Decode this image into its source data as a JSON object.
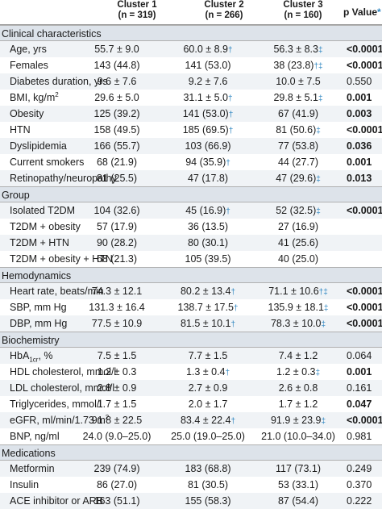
{
  "header": {
    "cluster1": "Cluster 1",
    "cluster1_n": "(n = 319)",
    "cluster2": "Cluster 2",
    "cluster2_n": "(n = 266)",
    "cluster3": "Cluster 3",
    "cluster3_n": "(n = 160)",
    "pvalue": "p Value",
    "pvalue_mark": "*"
  },
  "sections": [
    {
      "title": "Clinical characteristics",
      "rows": [
        {
          "label": "Age, yrs",
          "c1": "55.7 ± 9.0",
          "c2": "60.0 ± 8.9",
          "c2m": "†",
          "c3": "56.3 ± 8.3",
          "c3m": "‡",
          "p": "<0.0001",
          "bold": true
        },
        {
          "label": "Females",
          "c1": "143 (44.8)",
          "c2": "141 (53.0)",
          "c2m": "",
          "c3": "38 (23.8)",
          "c3m": "†‡",
          "p": "<0.0001",
          "bold": true
        },
        {
          "label": "Diabetes duration, yrs",
          "c1": "9.6 ± 7.6",
          "c2": "9.2 ± 7.6",
          "c2m": "",
          "c3": "10.0 ± 7.5",
          "c3m": "",
          "p": "0.550",
          "bold": false
        },
        {
          "label": "BMI, kg/m",
          "sup": "2",
          "c1": "29.6 ± 5.0",
          "c2": "31.1 ± 5.0",
          "c2m": "†",
          "c3": "29.8 ± 5.1",
          "c3m": "‡",
          "p": "0.001",
          "bold": true
        },
        {
          "label": "Obesity",
          "c1": "125 (39.2)",
          "c2": "141 (53.0)",
          "c2m": "†",
          "c3": "67 (41.9)",
          "c3m": "",
          "p": "0.003",
          "bold": true
        },
        {
          "label": "HTN",
          "c1": "158 (49.5)",
          "c2": "185 (69.5)",
          "c2m": "†",
          "c3": "81 (50.6)",
          "c3m": "‡",
          "p": "<0.0001",
          "bold": true
        },
        {
          "label": "Dyslipidemia",
          "c1": "166 (55.7)",
          "c2": "103 (66.9)",
          "c2m": "",
          "c3": "77 (53.8)",
          "c3m": "",
          "p": "0.036",
          "bold": true
        },
        {
          "label": "Current smokers",
          "c1": "68 (21.9)",
          "c2": "94 (35.9)",
          "c2m": "†",
          "c3": "44 (27.7)",
          "c3m": "",
          "p": "0.001",
          "bold": true
        },
        {
          "label": "Retinopathy/neuropathy",
          "c1": "81 (25.5)",
          "c2": "47 (17.8)",
          "c2m": "",
          "c3": "47 (29.6)",
          "c3m": "‡",
          "p": "0.013",
          "bold": true
        }
      ]
    },
    {
      "title": "Group",
      "rows": [
        {
          "label": "Isolated T2DM",
          "c1": "104 (32.6)",
          "c2": "45 (16.9)",
          "c2m": "†",
          "c3": "52 (32.5)",
          "c3m": "‡",
          "p": "<0.0001",
          "bold": true
        },
        {
          "label": "T2DM + obesity",
          "c1": "57 (17.9)",
          "c2": "36 (13.5)",
          "c2m": "",
          "c3": "27 (16.9)",
          "c3m": "",
          "p": "",
          "bold": false
        },
        {
          "label": "T2DM + HTN",
          "c1": "90 (28.2)",
          "c2": "80 (30.1)",
          "c2m": "",
          "c3": "41 (25.6)",
          "c3m": "",
          "p": "",
          "bold": false
        },
        {
          "label": "T2DM + obesity + HTN",
          "c1": "68 (21.3)",
          "c2": "105 (39.5)",
          "c2m": "",
          "c3": "40 (25.0)",
          "c3m": "",
          "p": "",
          "bold": false
        }
      ]
    },
    {
      "title": "Hemodynamics",
      "rows": [
        {
          "label": "Heart rate, beats/min",
          "c1": "74.3 ± 12.1",
          "c2": "80.2 ± 13.4",
          "c2m": "†",
          "c3": "71.1 ± 10.6",
          "c3m": "†‡",
          "p": "<0.0001",
          "bold": true
        },
        {
          "label": "SBP, mm Hg",
          "c1": "131.3 ± 16.4",
          "c2": "138.7 ± 17.5",
          "c2m": "†",
          "c3": "135.9 ± 18.1",
          "c3m": "‡",
          "p": "<0.0001",
          "bold": true
        },
        {
          "label": "DBP, mm Hg",
          "c1": "77.5 ± 10.9",
          "c2": "81.5 ± 10.1",
          "c2m": "†",
          "c3": "78.3 ± 10.0",
          "c3m": "‡",
          "p": "<0.0001",
          "bold": true
        }
      ]
    },
    {
      "title": "Biochemistry",
      "rows": [
        {
          "label": "HbA",
          "sub": "1cr",
          "label_tail": ", %",
          "c1": "7.5 ± 1.5",
          "c2": "7.7 ± 1.5",
          "c2m": "",
          "c3": "7.4 ± 1.2",
          "c3m": "",
          "p": "0.064",
          "bold": false
        },
        {
          "label": "HDL cholesterol, mmol/l",
          "c1": "1.2 ± 0.3",
          "c2": "1.3 ± 0.4",
          "c2m": "†",
          "c3": "1.2 ± 0.3",
          "c3m": "‡",
          "p": "0.001",
          "bold": true
        },
        {
          "label": "LDL cholesterol, mmol/l",
          "c1": "2.8 ± 0.9",
          "c2": "2.7 ± 0.9",
          "c2m": "",
          "c3": "2.6 ± 0.8",
          "c3m": "",
          "p": "0.161",
          "bold": false
        },
        {
          "label": "Triglycerides, mmol/l",
          "c1": "1.7 ± 1.5",
          "c2": "2.0 ± 1.7",
          "c2m": "",
          "c3": "1.7 ± 1.2",
          "c3m": "",
          "p": "0.047",
          "bold": true
        },
        {
          "label": "eGFR, ml/min/1.73 m",
          "sup": "2",
          "c1": "91.8 ± 22.5",
          "c2": "83.4 ± 22.4",
          "c2m": "†",
          "c3": "91.9 ± 23.9",
          "c3m": "‡",
          "p": "<0.0001",
          "bold": true
        },
        {
          "label": "BNP, ng/ml",
          "c1": "24.0 (9.0–25.0)",
          "c2": "25.0 (19.0–25.0)",
          "c2m": "",
          "c3": "21.0 (10.0–34.0)",
          "c3m": "",
          "p": "0.981",
          "bold": false
        }
      ]
    },
    {
      "title": "Medications",
      "rows": [
        {
          "label": "Metformin",
          "c1": "239 (74.9)",
          "c2": "183 (68.8)",
          "c2m": "",
          "c3": "117 (73.1)",
          "c3m": "",
          "p": "0.249",
          "bold": false
        },
        {
          "label": "Insulin",
          "c1": "86 (27.0)",
          "c2": "81 (30.5)",
          "c2m": "",
          "c3": "53 (33.1)",
          "c3m": "",
          "p": "0.370",
          "bold": false
        },
        {
          "label": "ACE inhibitor or ARB",
          "c1": "163 (51.1)",
          "c2": "155 (58.3)",
          "c2m": "",
          "c3": "87 (54.4)",
          "c3m": "",
          "p": "0.222",
          "bold": false
        }
      ]
    }
  ]
}
